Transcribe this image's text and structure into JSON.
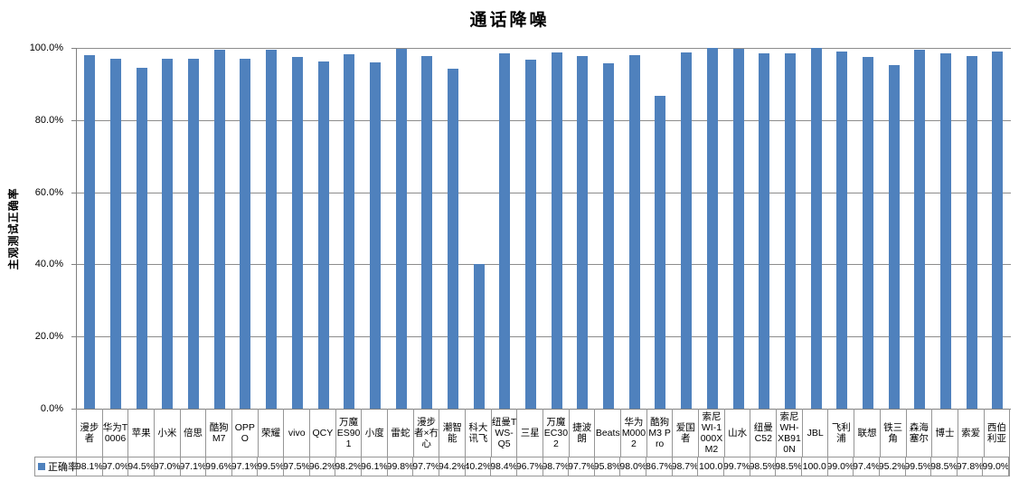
{
  "title": "通话降噪",
  "y_axis": {
    "title": "主观测试正确率",
    "ticks": [
      "0.0%",
      "20.0%",
      "40.0%",
      "60.0%",
      "80.0%",
      "100.0%"
    ]
  },
  "legend": {
    "series_label": "正确率"
  },
  "colors": {
    "bar_fill": "#4F81BD",
    "gridline": "#8C8C8C",
    "axis": "#808080",
    "table_border": "#969696"
  },
  "chart_data": {
    "type": "bar",
    "title": "通话降噪",
    "xlabel": "",
    "ylabel": "主观测试正确率",
    "ylim": [
      0,
      100
    ],
    "y_tick_step": 20,
    "grid": true,
    "legend_position": "bottom-table-left",
    "categories": [
      "漫步者",
      "华为T0006",
      "苹果",
      "小米",
      "倍思",
      "酷狗M7",
      "OPPO",
      "荣耀",
      "vivo",
      "QCY",
      "万魔ES901",
      "小度",
      "雷蛇",
      "漫步者×冇心",
      "潮智能",
      "科大讯飞",
      "纽曼TWS-Q5",
      "三星",
      "万魔EC302",
      "捷波朗",
      "Beats",
      "华为M0002",
      "酷狗M3 Pro",
      "爱国者",
      "索尼WI-1000XM2",
      "山水",
      "纽曼C52",
      "索尼WH-XB910N",
      "JBL",
      "飞利浦",
      "联想",
      "铁三角",
      "森海塞尔",
      "博士",
      "索爱",
      "西伯利亚"
    ],
    "series": [
      {
        "name": "正确率",
        "values": [
          98.1,
          97.0,
          94.5,
          97.0,
          97.1,
          99.6,
          97.1,
          99.5,
          97.5,
          96.2,
          98.2,
          96.1,
          99.8,
          97.7,
          94.2,
          40.2,
          98.4,
          96.7,
          98.7,
          97.7,
          95.8,
          98.0,
          86.7,
          98.7,
          100.0,
          99.7,
          98.5,
          98.5,
          100.0,
          99.0,
          97.4,
          95.2,
          99.5,
          98.5,
          97.8,
          99.0
        ],
        "display": [
          "98.1%",
          "97.0%",
          "94.5%",
          "97.0%",
          "97.1%",
          "99.6%",
          "97.1%",
          "99.5%",
          "97.5%",
          "96.2%",
          "98.2%",
          "96.1%",
          "99.8%",
          "97.7%",
          "94.2%",
          "40.2%",
          "98.4%",
          "96.7%",
          "98.7%",
          "97.7%",
          "95.8%",
          "98.0%",
          "86.7%",
          "98.7%",
          "100.0",
          "99.7%",
          "98.5%",
          "98.5%",
          "100.0",
          "99.0%",
          "97.4%",
          "95.2%",
          "99.5%",
          "98.5%",
          "97.8%",
          "99.0%"
        ]
      }
    ]
  }
}
